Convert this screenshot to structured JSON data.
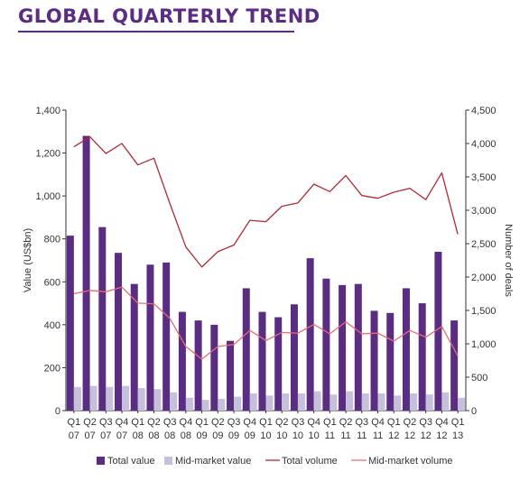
{
  "title": "GLOBAL QUARTERLY TREND",
  "colors": {
    "title": "#5a2c82",
    "total_value": "#5a2c82",
    "mid_market_value": "#c7c0dd",
    "total_volume": "#b02a35",
    "mid_market_volume": "#e46c72"
  },
  "chart_data": {
    "type": "bar",
    "categories": [
      "Q1 07",
      "Q2 07",
      "Q3 07",
      "Q4 07",
      "Q1 08",
      "Q2 08",
      "Q3 08",
      "Q4 08",
      "Q1 09",
      "Q2 09",
      "Q3 09",
      "Q4 09",
      "Q1 10",
      "Q2 10",
      "Q3 10",
      "Q4 10",
      "Q1 11",
      "Q2 11",
      "Q3 11",
      "Q4 11",
      "Q1 12",
      "Q2 12",
      "Q3 12",
      "Q4 12",
      "Q1 13"
    ],
    "category_labels": [
      [
        "Q1",
        "07"
      ],
      [
        "Q2",
        "07"
      ],
      [
        "Q3",
        "07"
      ],
      [
        "Q4",
        "07"
      ],
      [
        "Q1",
        "08"
      ],
      [
        "Q2",
        "08"
      ],
      [
        "Q3",
        "08"
      ],
      [
        "Q4",
        "08"
      ],
      [
        "Q1",
        "09"
      ],
      [
        "Q2",
        "09"
      ],
      [
        "Q3",
        "09"
      ],
      [
        "Q4",
        "09"
      ],
      [
        "Q1",
        "10"
      ],
      [
        "Q2",
        "10"
      ],
      [
        "Q3",
        "10"
      ],
      [
        "Q4",
        "10"
      ],
      [
        "Q1",
        "11"
      ],
      [
        "Q2",
        "11"
      ],
      [
        "Q3",
        "11"
      ],
      [
        "Q4",
        "11"
      ],
      [
        "Q1",
        "12"
      ],
      [
        "Q2",
        "12"
      ],
      [
        "Q3",
        "12"
      ],
      [
        "Q4",
        "12"
      ],
      [
        "Q1",
        "13"
      ]
    ],
    "series": [
      {
        "name": "Total value",
        "kind": "bar",
        "axis": "left",
        "values": [
          815,
          1280,
          855,
          735,
          590,
          680,
          690,
          460,
          420,
          400,
          325,
          570,
          460,
          435,
          495,
          710,
          615,
          585,
          590,
          465,
          455,
          570,
          500,
          740,
          420
        ]
      },
      {
        "name": "Mid-market value",
        "kind": "bar",
        "axis": "left",
        "values": [
          110,
          115,
          110,
          115,
          105,
          100,
          85,
          60,
          50,
          55,
          65,
          80,
          70,
          80,
          80,
          90,
          75,
          90,
          80,
          80,
          70,
          80,
          75,
          85,
          60
        ]
      },
      {
        "name": "Total volume",
        "kind": "line",
        "axis": "right",
        "values": [
          3950,
          4100,
          3850,
          4000,
          3680,
          3780,
          3100,
          2450,
          2150,
          2380,
          2480,
          2850,
          2830,
          3060,
          3110,
          3390,
          3280,
          3520,
          3220,
          3180,
          3270,
          3330,
          3160,
          3560,
          2640
        ]
      },
      {
        "name": "Mid-market volume",
        "kind": "line",
        "axis": "right",
        "values": [
          1750,
          1800,
          1780,
          1850,
          1610,
          1600,
          1380,
          960,
          770,
          960,
          990,
          1200,
          1050,
          1170,
          1160,
          1290,
          1150,
          1330,
          1150,
          1160,
          1040,
          1200,
          1100,
          1260,
          820
        ]
      }
    ],
    "ylabel": "Value (US$bn)",
    "y2label": "Number of deals",
    "ylim": [
      0,
      1400
    ],
    "y2lim": [
      0,
      4500
    ],
    "yticks": [
      "0",
      "200",
      "400",
      "600",
      "800",
      "1,000",
      "1,200",
      "1,400"
    ],
    "y2ticks": [
      "0",
      "500",
      "1,000",
      "1,500",
      "2,000",
      "2,500",
      "3,000",
      "3,500",
      "4,000",
      "4,500"
    ],
    "grid": false,
    "legend_position": "bottom"
  }
}
